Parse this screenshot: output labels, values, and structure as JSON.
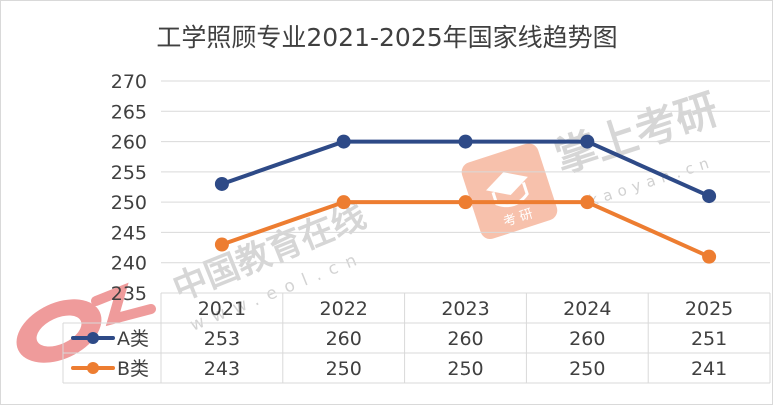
{
  "chart_data": {
    "type": "line",
    "title": "工学照顾专业2021-2025年国家线趋势图",
    "categories": [
      "2021",
      "2022",
      "2023",
      "2024",
      "2025"
    ],
    "ylim": [
      235,
      270
    ],
    "yticks": [
      270,
      265,
      260,
      255,
      250,
      245,
      240,
      235
    ],
    "grid": true,
    "legend": "data-table",
    "series": [
      {
        "name": "A类",
        "values": [
          253,
          260,
          260,
          260,
          251
        ],
        "color": "#2e4a87"
      },
      {
        "name": "B类",
        "values": [
          243,
          250,
          250,
          250,
          241
        ],
        "color": "#ed7d31"
      }
    ]
  },
  "watermarks": {
    "eol_text": "中国教育在线",
    "eol_url": "www.eol.cn",
    "kaoyan_text": "掌上考研",
    "kaoyan_url": "kaoyan.cn",
    "kaoyan_badge": "考 研"
  },
  "colors": {
    "grid": "#d9d9d9",
    "axis_text": "#404040",
    "title_text": "#404040"
  }
}
